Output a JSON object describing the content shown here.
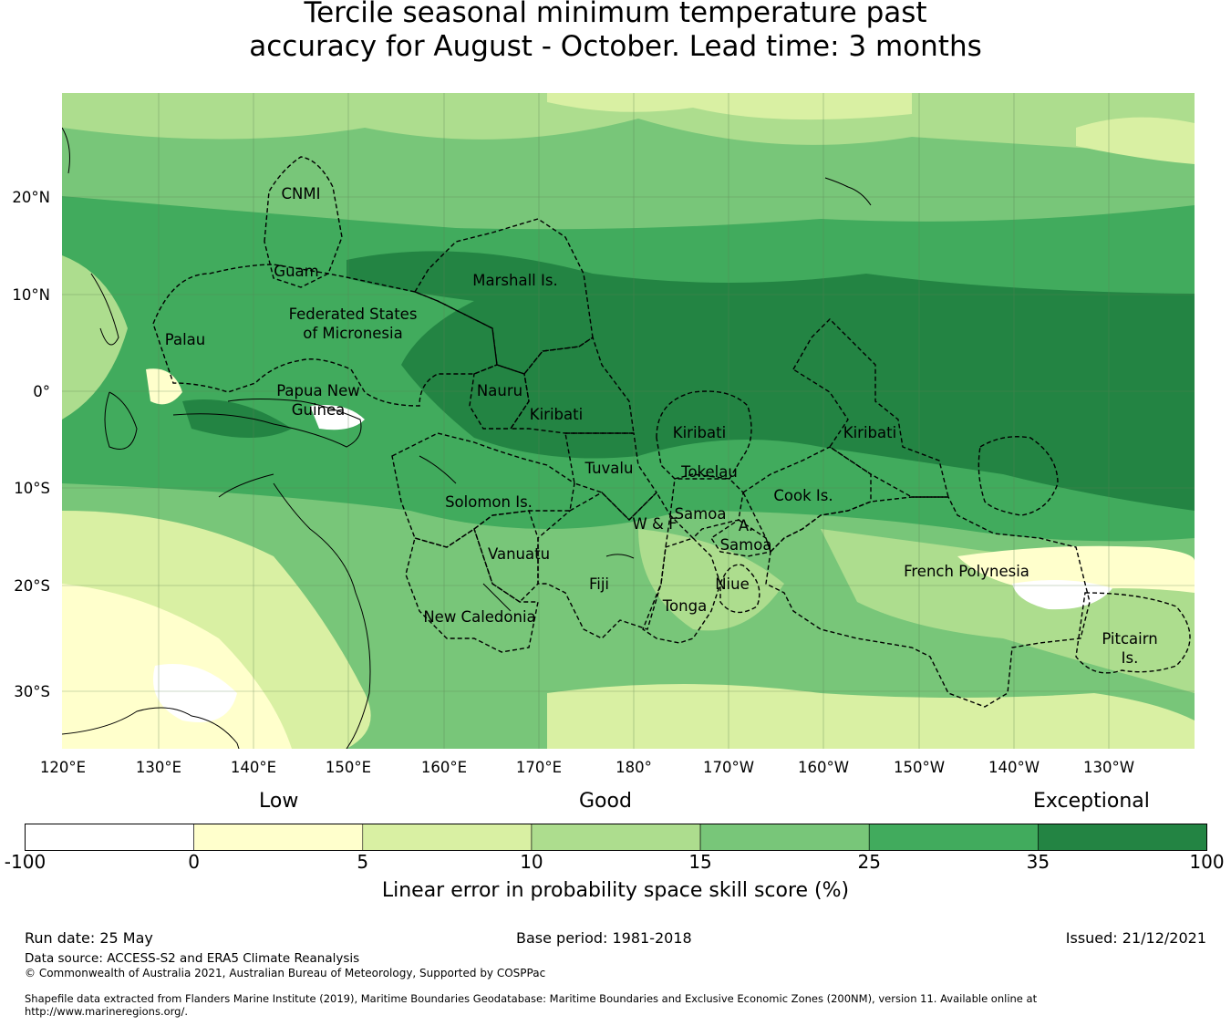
{
  "title_line1": "Tercile seasonal minimum temperature past",
  "title_line2": "accuracy for August - October. Lead time: 3 months",
  "lat_labels": [
    "20°N",
    "10°N",
    "0°",
    "10°S",
    "20°S",
    "30°S"
  ],
  "lon_labels": [
    "120°E",
    "130°E",
    "140°E",
    "150°E",
    "160°E",
    "170°E",
    "180°",
    "170°W",
    "160°W",
    "150°W",
    "140°W",
    "130°W"
  ],
  "regions": [
    "CNMI",
    "Guam",
    "Marshall Is.",
    "Federated States",
    "of Micronesia",
    "Palau",
    "Papua New",
    "Guinea",
    "Nauru",
    "Kiribati",
    "Kiribati",
    "Kiribati",
    "Tuvalu",
    "Tokelau",
    "Cook Is.",
    "Solomon Is.",
    "Samoa",
    "W & F",
    "A.",
    "Samoa",
    "Vanuatu",
    "Fiji",
    "Niue",
    "Tonga",
    "New Caledonia",
    "French Polynesia",
    "Pitcairn",
    "Is."
  ],
  "colorbar": {
    "categories": [
      "Low",
      "Good",
      "Exceptional"
    ],
    "ticks": [
      "-100",
      "0",
      "5",
      "10",
      "15",
      "25",
      "35",
      "100"
    ],
    "colors": [
      "#ffffff",
      "#ffffcc",
      "#d9f0a3",
      "#addd8e",
      "#78c679",
      "#41ab5d",
      "#238443"
    ],
    "title": "Linear error in probability space skill score (%)"
  },
  "footer": {
    "run_date": "Run date: 25 May",
    "base_period": "Base period: 1981-2018",
    "issued": "Issued: 21/12/2021",
    "data_source": "Data source: ACCESS-S2 and ERA5 Climate Reanalysis",
    "copyright": "© Commonwealth of Australia 2021, Australian Bureau of Meteorology, Supported by COSPPac",
    "shapefile_line1": "Shapefile data extracted from Flanders Marine Institute (2019), Maritime Boundaries Geodatabase: Maritime Boundaries and Exclusive Economic Zones (200NM), version 11. Available online at",
    "shapefile_line2": "http://www.marineregions.org/."
  }
}
